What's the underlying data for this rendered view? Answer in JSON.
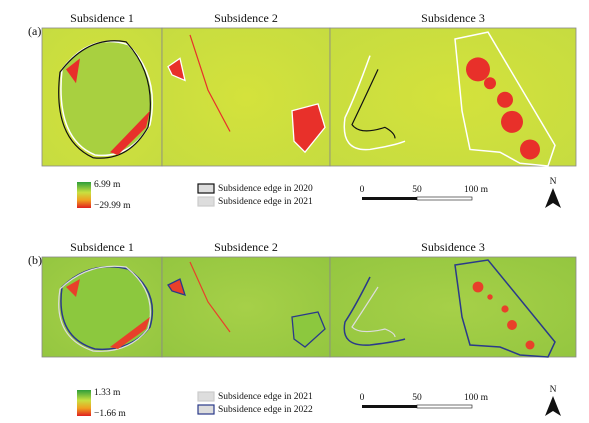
{
  "panels": [
    {
      "label": "(a)",
      "titles": [
        "Subsidence 1",
        "Subsidence 2",
        "Subsidence 3"
      ],
      "colorbar": {
        "max": "6.99 m",
        "min": "−29.99 m"
      },
      "legend": [
        "Subsidence edge in 2020",
        "Subsidence edge in 2021"
      ],
      "scale": [
        "0",
        "50",
        "100 m"
      ],
      "north": "N"
    },
    {
      "label": "(b)",
      "titles": [
        "Subsidence 1",
        "Subsidence 2",
        "Subsidence 3"
      ],
      "colorbar": {
        "max": "1.33 m",
        "min": "−1.66 m"
      },
      "legend": [
        "Subsidence edge in 2021",
        "Subsidence edge in 2022"
      ],
      "scale": [
        "0",
        "50",
        "100 m"
      ],
      "north": "N"
    }
  ]
}
